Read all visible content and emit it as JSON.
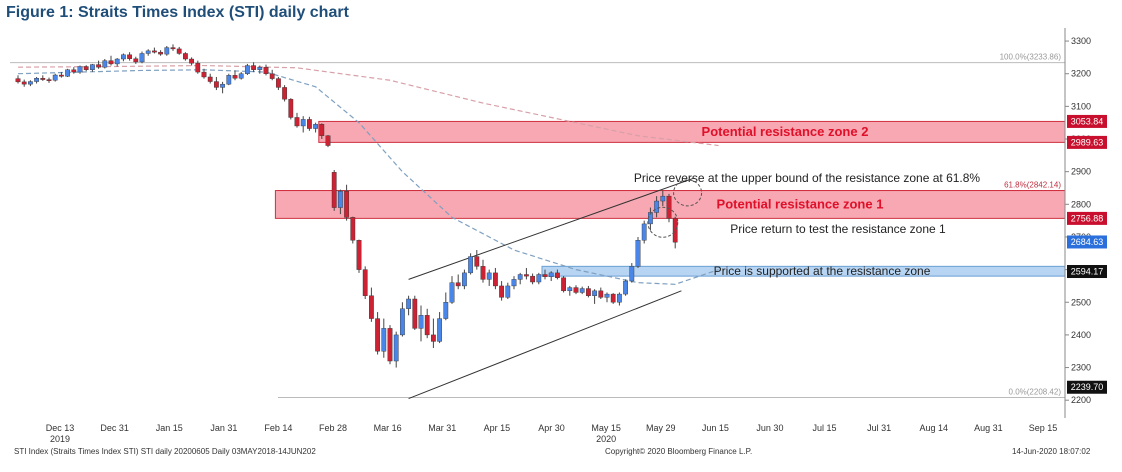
{
  "title": "Figure 1: Straits Times Index (STI) daily chart",
  "footer": {
    "left": "STI Index (Straits Times Index STI) STI daily 20200605  Daily 03MAY2018-14JUN202",
    "center": "Copyright© 2020 Bloomberg Finance L.P.",
    "right": "14-Jun-2020 18:07:02"
  },
  "chart_data": {
    "type": "candlestick",
    "title": "Figure 1: Straits Times Index (STI) daily chart",
    "ylim": [
      2170,
      3340
    ],
    "y_ticks": [
      2200,
      2300,
      2400,
      2500,
      2600,
      2700,
      2800,
      2900,
      3000,
      3100,
      3200,
      3300
    ],
    "x_ticks": [
      {
        "label": "Dec 13",
        "sub": "2019"
      },
      {
        "label": "Dec 31",
        "sub": ""
      },
      {
        "label": "Jan 15",
        "sub": ""
      },
      {
        "label": "Jan 31",
        "sub": ""
      },
      {
        "label": "Feb 14",
        "sub": ""
      },
      {
        "label": "Feb 28",
        "sub": ""
      },
      {
        "label": "Mar 16",
        "sub": ""
      },
      {
        "label": "Mar 31",
        "sub": ""
      },
      {
        "label": "Apr 15",
        "sub": ""
      },
      {
        "label": "Apr 30",
        "sub": ""
      },
      {
        "label": "May 15",
        "sub": "2020"
      },
      {
        "label": "May 29",
        "sub": ""
      },
      {
        "label": "Jun 15",
        "sub": ""
      },
      {
        "label": "Jun 30",
        "sub": ""
      },
      {
        "label": "Jul 15",
        "sub": ""
      },
      {
        "label": "Jul 31",
        "sub": ""
      },
      {
        "label": "Aug 14",
        "sub": ""
      },
      {
        "label": "Aug 31",
        "sub": ""
      },
      {
        "label": "Sep 15",
        "sub": ""
      }
    ],
    "grid": false,
    "up_color": "#4a86e8",
    "down_color": "#cc2233",
    "candles": [
      [
        3185,
        3195,
        3170,
        3175
      ],
      [
        3175,
        3182,
        3160,
        3168
      ],
      [
        3168,
        3180,
        3162,
        3176
      ],
      [
        3176,
        3190,
        3170,
        3186
      ],
      [
        3186,
        3195,
        3178,
        3182
      ],
      [
        3182,
        3188,
        3172,
        3180
      ],
      [
        3180,
        3200,
        3176,
        3196
      ],
      [
        3196,
        3205,
        3188,
        3192
      ],
      [
        3192,
        3215,
        3190,
        3212
      ],
      [
        3212,
        3220,
        3200,
        3205
      ],
      [
        3205,
        3225,
        3200,
        3222
      ],
      [
        3222,
        3226,
        3208,
        3212
      ],
      [
        3212,
        3230,
        3206,
        3228
      ],
      [
        3228,
        3240,
        3215,
        3220
      ],
      [
        3220,
        3245,
        3216,
        3240
      ],
      [
        3240,
        3255,
        3225,
        3230
      ],
      [
        3230,
        3248,
        3222,
        3245
      ],
      [
        3245,
        3262,
        3238,
        3258
      ],
      [
        3258,
        3266,
        3240,
        3246
      ],
      [
        3246,
        3252,
        3230,
        3236
      ],
      [
        3236,
        3268,
        3232,
        3262
      ],
      [
        3262,
        3275,
        3255,
        3270
      ],
      [
        3270,
        3280,
        3262,
        3266
      ],
      [
        3266,
        3272,
        3255,
        3260
      ],
      [
        3260,
        3285,
        3255,
        3280
      ],
      [
        3280,
        3290,
        3270,
        3276
      ],
      [
        3276,
        3282,
        3258,
        3262
      ],
      [
        3262,
        3266,
        3240,
        3245
      ],
      [
        3245,
        3250,
        3225,
        3232
      ],
      [
        3232,
        3240,
        3200,
        3205
      ],
      [
        3205,
        3215,
        3185,
        3190
      ],
      [
        3190,
        3200,
        3170,
        3176
      ],
      [
        3176,
        3190,
        3150,
        3158
      ],
      [
        3158,
        3175,
        3140,
        3168
      ],
      [
        3168,
        3200,
        3165,
        3195
      ],
      [
        3195,
        3210,
        3180,
        3186
      ],
      [
        3186,
        3205,
        3182,
        3200
      ],
      [
        3200,
        3230,
        3196,
        3225
      ],
      [
        3225,
        3235,
        3205,
        3212
      ],
      [
        3212,
        3225,
        3200,
        3220
      ],
      [
        3220,
        3228,
        3195,
        3200
      ],
      [
        3200,
        3212,
        3180,
        3185
      ],
      [
        3185,
        3190,
        3150,
        3158
      ],
      [
        3158,
        3165,
        3115,
        3122
      ],
      [
        3122,
        3125,
        3060,
        3066
      ],
      [
        3066,
        3080,
        3035,
        3040
      ],
      [
        3040,
        3070,
        3020,
        3060
      ],
      [
        3060,
        3068,
        3025,
        3032
      ],
      [
        3032,
        3050,
        3020,
        3045
      ],
      [
        3045,
        3048,
        3000,
        3010
      ],
      [
        3010,
        3012,
        2975,
        2980
      ],
      [
        2898,
        2905,
        2780,
        2790
      ],
      [
        2790,
        2845,
        2770,
        2840
      ],
      [
        2840,
        2860,
        2750,
        2760
      ],
      [
        2760,
        2762,
        2680,
        2690
      ],
      [
        2690,
        2692,
        2590,
        2600
      ],
      [
        2600,
        2610,
        2510,
        2520
      ],
      [
        2520,
        2545,
        2440,
        2450
      ],
      [
        2450,
        2470,
        2340,
        2350
      ],
      [
        2350,
        2450,
        2330,
        2420
      ],
      [
        2420,
        2430,
        2310,
        2320
      ],
      [
        2320,
        2410,
        2300,
        2400
      ],
      [
        2400,
        2500,
        2395,
        2480
      ],
      [
        2480,
        2520,
        2460,
        2510
      ],
      [
        2510,
        2520,
        2415,
        2420
      ],
      [
        2420,
        2490,
        2380,
        2460
      ],
      [
        2460,
        2480,
        2390,
        2400
      ],
      [
        2400,
        2450,
        2360,
        2380
      ],
      [
        2380,
        2470,
        2375,
        2450
      ],
      [
        2450,
        2530,
        2445,
        2500
      ],
      [
        2500,
        2580,
        2495,
        2560
      ],
      [
        2560,
        2585,
        2540,
        2550
      ],
      [
        2550,
        2600,
        2540,
        2590
      ],
      [
        2590,
        2650,
        2585,
        2640
      ],
      [
        2640,
        2660,
        2600,
        2610
      ],
      [
        2610,
        2630,
        2560,
        2570
      ],
      [
        2570,
        2600,
        2550,
        2590
      ],
      [
        2590,
        2605,
        2540,
        2550
      ],
      [
        2550,
        2565,
        2505,
        2515
      ],
      [
        2515,
        2560,
        2510,
        2550
      ],
      [
        2550,
        2580,
        2540,
        2570
      ],
      [
        2570,
        2590,
        2555,
        2585
      ],
      [
        2585,
        2605,
        2570,
        2580
      ],
      [
        2580,
        2588,
        2555,
        2562
      ],
      [
        2562,
        2590,
        2555,
        2585
      ],
      [
        2585,
        2600,
        2570,
        2578
      ],
      [
        2578,
        2595,
        2565,
        2590
      ],
      [
        2590,
        2600,
        2570,
        2575
      ],
      [
        2575,
        2580,
        2530,
        2535
      ],
      [
        2535,
        2550,
        2520,
        2545
      ],
      [
        2545,
        2552,
        2525,
        2530
      ],
      [
        2530,
        2548,
        2525,
        2542
      ],
      [
        2542,
        2550,
        2515,
        2520
      ],
      [
        2520,
        2540,
        2495,
        2535
      ],
      [
        2535,
        2545,
        2510,
        2515
      ],
      [
        2515,
        2530,
        2500,
        2525
      ],
      [
        2525,
        2528,
        2495,
        2500
      ],
      [
        2500,
        2530,
        2490,
        2525
      ],
      [
        2525,
        2570,
        2520,
        2565
      ],
      [
        2565,
        2620,
        2560,
        2610
      ],
      [
        2610,
        2700,
        2605,
        2690
      ],
      [
        2690,
        2750,
        2680,
        2740
      ],
      [
        2740,
        2790,
        2720,
        2775
      ],
      [
        2775,
        2825,
        2760,
        2810
      ],
      [
        2810,
        2842,
        2795,
        2825
      ],
      [
        2825,
        2832,
        2745,
        2757
      ],
      [
        2757,
        2762,
        2665,
        2684
      ]
    ],
    "moving_averages": [
      {
        "color": "#d8a0a8",
        "style": "dashed",
        "points": [
          [
            0,
            3220
          ],
          [
            15,
            3222
          ],
          [
            30,
            3225
          ],
          [
            45,
            3218
          ],
          [
            60,
            3180
          ],
          [
            75,
            3110
          ],
          [
            90,
            3050
          ],
          [
            100,
            3010
          ],
          [
            113,
            2980
          ]
        ]
      },
      {
        "color": "#7fa0c0",
        "style": "dashed",
        "points": [
          [
            0,
            3200
          ],
          [
            10,
            3205
          ],
          [
            20,
            3210
          ],
          [
            30,
            3212
          ],
          [
            40,
            3205
          ],
          [
            48,
            3160
          ],
          [
            55,
            3050
          ],
          [
            62,
            2900
          ],
          [
            70,
            2760
          ],
          [
            80,
            2660
          ],
          [
            90,
            2600
          ],
          [
            100,
            2560
          ],
          [
            106,
            2555
          ],
          [
            113,
            2600
          ]
        ]
      }
    ],
    "fib_levels": [
      {
        "label": "100.0%(3233.86)",
        "value": 3233.86
      },
      {
        "label": "61.8%(2842.14)",
        "value": 2842.14
      },
      {
        "label": "0.0%(2208.42)",
        "value": 2208.42
      }
    ],
    "zones": [
      {
        "label": "Potential resistance zone 2",
        "from": 2989.63,
        "to": 3053.84,
        "fill": "#f7a8b2",
        "stroke": "#d03040",
        "text_color": "#e0102a",
        "start_index": 49
      },
      {
        "label": "Potential resistance zone 1",
        "from": 2756.88,
        "to": 2842.14,
        "fill": "#f7a8b2",
        "stroke": "#d03040",
        "text_color": "#e0102a",
        "start_index": 42
      },
      {
        "label": "Price is supported at the resistance zone",
        "from": 2580,
        "to": 2610,
        "fill": "#b7d4f2",
        "stroke": "#6a9fd4",
        "text_color": "#222222",
        "start_index": 85
      }
    ],
    "annotations": [
      {
        "text": "Price reverse at the upper bound of the resistance zone at 61.8%"
      },
      {
        "text": "Price return to test the resistance zone 1"
      }
    ],
    "channel": {
      "upper": [
        [
          63,
          2570
        ],
        [
          109,
          2880
        ]
      ],
      "lower": [
        [
          63,
          2205
        ],
        [
          107,
          2535
        ]
      ]
    },
    "price_tags": [
      {
        "label": "3053.84",
        "value": 3053.84,
        "bg": "#c8102e",
        "fg": "#ffffff"
      },
      {
        "label": "2989.63",
        "value": 2989.63,
        "bg": "#c8102e",
        "fg": "#ffffff"
      },
      {
        "label": "2756.88",
        "value": 2756.88,
        "bg": "#c8102e",
        "fg": "#ffffff"
      },
      {
        "label": "2684.63",
        "value": 2684.63,
        "bg": "#2a6fdb",
        "fg": "#ffffff"
      },
      {
        "label": "2594.17",
        "value": 2594.17,
        "bg": "#111111",
        "fg": "#ffffff"
      },
      {
        "label": "2239.70",
        "value": 2239.7,
        "bg": "#111111",
        "fg": "#ffffff"
      }
    ]
  }
}
